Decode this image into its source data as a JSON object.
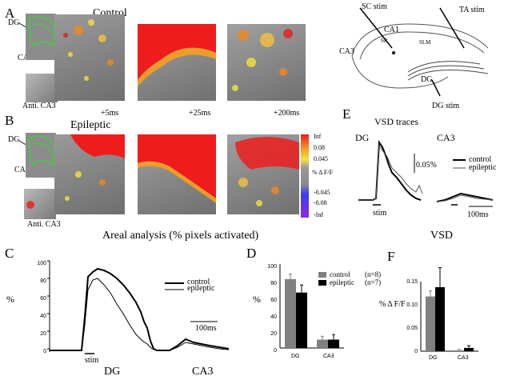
{
  "panel_a": {
    "letter": "A",
    "title": "Control",
    "labels": {
      "dg": "DG",
      "ca3": "CA3",
      "anti": "Anti. CA3"
    },
    "times": [
      "+5ms",
      "+25ms",
      "+200ms"
    ]
  },
  "panel_b": {
    "letter": "B",
    "title": "Epileptic",
    "labels": {
      "dg": "DG",
      "ca3": "CA3",
      "anti": "Anti. CA3"
    },
    "colorbar": {
      "ticks": [
        "Inf",
        "0.08",
        "0.045",
        "% Δ F/F",
        "-0.045",
        "-0.08",
        "-Inf"
      ]
    }
  },
  "schematic": {
    "labels": {
      "sc_stim": "SC stim",
      "ta_stim": "TA stim",
      "ca1": "CA1",
      "sr": "SR",
      "slm": "SLM",
      "ca3": "CA3",
      "dg": "DG",
      "dg_stim": "DG stim"
    }
  },
  "panel_e": {
    "letter": "E",
    "title": "VSD traces",
    "dg": "DG",
    "ca3": "CA3",
    "scale": "0.05%",
    "stim": "stim",
    "time_scale": "100ms",
    "legend": [
      "control",
      "epileptic"
    ]
  },
  "areal_title": "Areal analysis (% pixels activated)",
  "vsd_title": "VSD",
  "panel_c": {
    "letter": "C",
    "ylabel": "%",
    "yticks": [
      "100",
      "80",
      "60",
      "40",
      "20",
      "0"
    ],
    "legend": [
      "control",
      "epileptic"
    ],
    "stim": "stim",
    "time_scale": "100ms",
    "dg": "DG",
    "ca3": "CA3"
  },
  "chart_data": [
    {
      "type": "bar",
      "panel": "D",
      "letter": "D",
      "ylabel": "%",
      "ylim": [
        0,
        100
      ],
      "yticks": [
        "100",
        "80",
        "60",
        "40",
        "20",
        "0"
      ],
      "categories": [
        "DG",
        "CA3"
      ],
      "legend": [
        "control",
        "epileptic"
      ],
      "legend_n": [
        "(n=8)",
        "(n=7)"
      ],
      "series": [
        {
          "name": "control",
          "values": [
            82,
            10
          ],
          "errors": [
            6,
            4
          ],
          "color": "#808080"
        },
        {
          "name": "epileptic",
          "values": [
            66,
            10
          ],
          "errors": [
            9,
            6
          ],
          "color": "#000000"
        }
      ]
    },
    {
      "type": "bar",
      "panel": "F",
      "letter": "F",
      "ylabel": "% Δ F/F",
      "ylim": [
        0,
        0.15
      ],
      "yticks": [
        "0.15",
        "0.10",
        "0.05",
        "0"
      ],
      "categories": [
        "DG",
        "CA3"
      ],
      "series": [
        {
          "name": "control",
          "values": [
            0.118,
            0.002
          ],
          "errors": [
            0.012,
            0.002
          ],
          "color": "#808080"
        },
        {
          "name": "epileptic",
          "values": [
            0.138,
            0.007
          ],
          "errors": [
            0.042,
            0.005
          ],
          "color": "#000000"
        }
      ]
    }
  ]
}
